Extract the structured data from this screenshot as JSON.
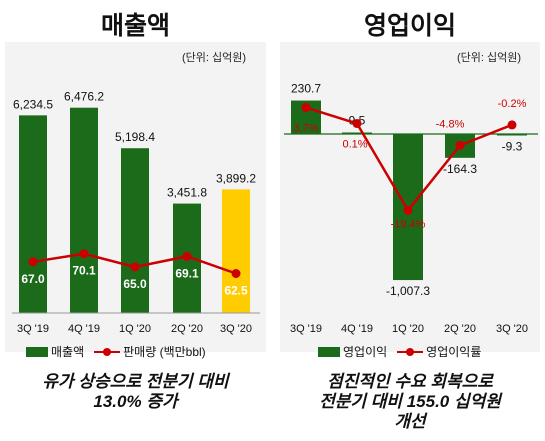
{
  "left_panel": {
    "title": "매출액",
    "unit": "(단위: 십억원)",
    "legend_bar": "매출액",
    "legend_line": "판매량 (백만bbl)",
    "caption_line1": "유가 상승으로 전분기 대비",
    "caption_line2": "13.0% 증가"
  },
  "right_panel": {
    "title": "영업이익",
    "unit": "(단위: 십억원)",
    "legend_bar": "영업이익",
    "legend_line": "영업이익률",
    "caption_line1": "점진적인 수요 회복으로",
    "caption_line2": "전분기 대비 155.0 십억원",
    "caption_line3": "개선"
  },
  "colors": {
    "bar": "#1b6b1b",
    "highlight": "#ffcc00",
    "line": "#cc0000",
    "panel_bg": "#f3f3f3"
  },
  "chart_data": [
    {
      "type": "bar",
      "title": "매출액",
      "categories": [
        "3Q '19",
        "4Q '19",
        "1Q '20",
        "2Q '20",
        "3Q '20"
      ],
      "series": [
        {
          "name": "매출액",
          "values": [
            6234.5,
            6476.2,
            5198.4,
            3451.8,
            3899.2
          ],
          "labels": [
            "6,234.5",
            "6,476.2",
            "5,198.4",
            "3,451.8",
            "3,899.2"
          ],
          "highlight_last": true
        },
        {
          "name": "판매량 (백만bbl)",
          "type": "line",
          "values": [
            67.0,
            70.1,
            65.0,
            69.1,
            62.5
          ],
          "labels": [
            "67.0",
            "70.1",
            "65.0",
            "69.1",
            "62.5"
          ]
        }
      ]
    },
    {
      "type": "bar",
      "title": "영업이익",
      "categories": [
        "3Q '19",
        "4Q '19",
        "1Q '20",
        "2Q '20",
        "3Q '20"
      ],
      "series": [
        {
          "name": "영업이익",
          "values": [
            230.7,
            9.5,
            -1007.3,
            -164.3,
            -9.3
          ],
          "labels": [
            "230.7",
            "9.5",
            "-1,007.3",
            "-164.3",
            "-9.3"
          ]
        },
        {
          "name": "영업이익률",
          "type": "line",
          "values": [
            3.7,
            0.1,
            -19.4,
            -4.8,
            -0.2
          ],
          "labels": [
            "3.7%",
            "0.1%",
            "-19.4%",
            "-4.8%",
            "-0.2%"
          ]
        }
      ]
    }
  ]
}
